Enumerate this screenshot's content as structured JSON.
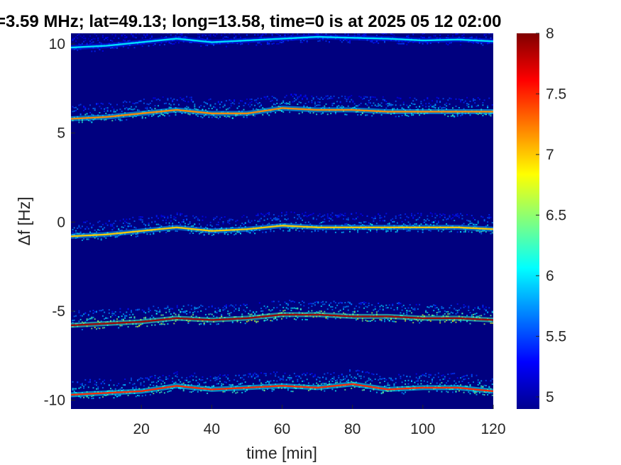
{
  "chart_data": {
    "type": "heatmap",
    "title": "=3.59 MHz;  lat=49.13; long=13.58, time=0 is at 2025 05 12 02:00",
    "xlabel": "time [min]",
    "ylabel": "Δf [Hz]",
    "xlim": [
      0,
      120
    ],
    "ylim": [
      -10.5,
      10.6
    ],
    "x_ticks": [
      20,
      40,
      60,
      80,
      100,
      120
    ],
    "y_ticks": [
      10,
      5,
      0,
      -5,
      -10
    ],
    "colormap": "jet",
    "clim": [
      4.9,
      8
    ],
    "colorbar_ticks": [
      8,
      7.5,
      7,
      6.5,
      6,
      5.5,
      5
    ],
    "background_color": "#00007f",
    "traces": [
      {
        "name": "",
        "times": [
          0,
          10,
          20,
          30,
          40,
          50,
          60,
          70,
          80,
          90,
          100,
          110,
          120
        ],
        "offsets": [
          9.8,
          9.9,
          10.1,
          10.3,
          10.1,
          10.2,
          10.3,
          10.4,
          10.35,
          10.3,
          10.2,
          10.25,
          10.15
        ],
        "peak": 6.0
      },
      {
        "name": "",
        "times": [
          0,
          10,
          20,
          30,
          40,
          50,
          60,
          70,
          80,
          90,
          100,
          110,
          120
        ],
        "offsets": [
          5.8,
          5.9,
          6.1,
          6.3,
          6.1,
          6.1,
          6.4,
          6.3,
          6.3,
          6.2,
          6.2,
          6.2,
          6.2
        ],
        "peak": 7.2
      },
      {
        "name": "",
        "times": [
          0,
          10,
          20,
          30,
          40,
          50,
          60,
          70,
          80,
          90,
          100,
          110,
          120
        ],
        "offsets": [
          -0.8,
          -0.7,
          -0.5,
          -0.3,
          -0.5,
          -0.4,
          -0.2,
          -0.3,
          -0.3,
          -0.3,
          -0.3,
          -0.3,
          -0.4
        ],
        "peak": 7.0
      },
      {
        "name": "",
        "times": [
          0,
          10,
          20,
          30,
          40,
          50,
          60,
          70,
          80,
          90,
          100,
          110,
          120
        ],
        "offsets": [
          -5.8,
          -5.7,
          -5.6,
          -5.4,
          -5.5,
          -5.4,
          -5.2,
          -5.2,
          -5.3,
          -5.3,
          -5.4,
          -5.4,
          -5.5
        ],
        "peak": 7.9
      },
      {
        "name": "",
        "times": [
          0,
          10,
          20,
          30,
          40,
          50,
          60,
          70,
          80,
          90,
          100,
          110,
          120
        ],
        "offsets": [
          -9.7,
          -9.6,
          -9.5,
          -9.2,
          -9.4,
          -9.3,
          -9.2,
          -9.3,
          -9.1,
          -9.4,
          -9.3,
          -9.3,
          -9.5
        ],
        "peak": 7.5
      }
    ]
  }
}
